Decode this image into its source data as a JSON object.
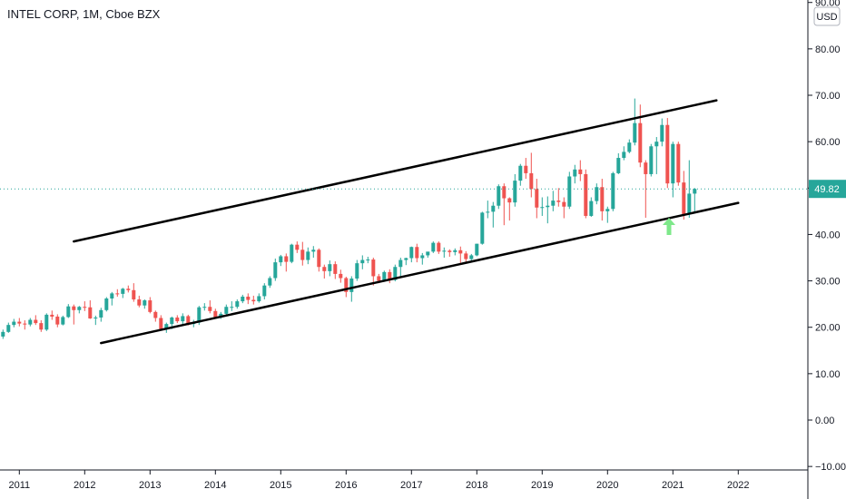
{
  "header": {
    "title": "INTEL CORP, 1M, Cboe BZX"
  },
  "currency_label": "USD",
  "last_price_label": "49.82",
  "colors": {
    "up": "#26a69a",
    "down": "#ef5350",
    "axis": "#131722",
    "price_line": "#26a69a",
    "trendline": "#000000",
    "arrow": "#7ee88a"
  },
  "chart_data": {
    "type": "candlestick",
    "title": "INTEL CORP, 1M, Cboe BZX",
    "y_axis": {
      "position": "right",
      "ticks": [
        {
          "value": 90,
          "label": "90.00"
        },
        {
          "value": 80,
          "label": "80.00"
        },
        {
          "value": 70,
          "label": "70.00"
        },
        {
          "value": 60,
          "label": "60.00"
        },
        {
          "value": 50,
          "label": "50.00"
        },
        {
          "value": 40,
          "label": "40.00"
        },
        {
          "value": 30,
          "label": "30.00"
        },
        {
          "value": 20,
          "label": "20.00"
        },
        {
          "value": 10,
          "label": "10.00"
        },
        {
          "value": 0,
          "label": "0.00"
        },
        {
          "value": -10,
          "label": "−10.00"
        }
      ]
    },
    "x_axis": {
      "ticks": [
        "2011",
        "2012",
        "2013",
        "2014",
        "2015",
        "2016",
        "2017",
        "2018",
        "2019",
        "2020",
        "2021",
        "2022"
      ]
    },
    "start_month": "2010-10",
    "candles": [
      [
        18.0,
        19.5,
        17.5,
        19.0
      ],
      [
        19.0,
        21.0,
        18.8,
        20.5
      ],
      [
        20.5,
        21.8,
        20.0,
        21.2
      ],
      [
        21.2,
        22.0,
        20.2,
        20.8
      ],
      [
        20.8,
        21.5,
        19.5,
        20.6
      ],
      [
        20.6,
        22.0,
        20.2,
        21.6
      ],
      [
        21.6,
        22.6,
        20.5,
        20.9
      ],
      [
        20.9,
        21.5,
        19.0,
        19.5
      ],
      [
        19.5,
        23.0,
        19.2,
        22.7
      ],
      [
        22.7,
        23.6,
        21.6,
        22.3
      ],
      [
        22.3,
        22.8,
        20.0,
        20.6
      ],
      [
        20.6,
        22.5,
        20.4,
        22.2
      ],
      [
        22.2,
        25.0,
        22.0,
        24.5
      ],
      [
        24.5,
        24.9,
        20.6,
        23.7
      ],
      [
        23.7,
        24.6,
        23.0,
        24.4
      ],
      [
        24.4,
        25.6,
        23.5,
        24.3
      ],
      [
        24.3,
        25.8,
        21.8,
        21.9
      ],
      [
        21.9,
        22.5,
        20.5,
        22.1
      ],
      [
        22.1,
        24.2,
        21.2,
        23.7
      ],
      [
        23.7,
        26.5,
        23.4,
        26.2
      ],
      [
        26.2,
        27.6,
        24.7,
        27.3
      ],
      [
        27.3,
        28.2,
        26.6,
        27.2
      ],
      [
        27.2,
        28.5,
        26.3,
        28.3
      ],
      [
        28.3,
        29.0,
        27.5,
        28.0
      ],
      [
        28.0,
        29.5,
        25.5,
        26.0
      ],
      [
        26.0,
        26.8,
        24.3,
        24.7
      ],
      [
        24.7,
        26.0,
        24.0,
        25.8
      ],
      [
        25.8,
        26.5,
        23.0,
        23.3
      ],
      [
        23.3,
        23.6,
        21.2,
        22.0
      ],
      [
        22.0,
        22.6,
        19.3,
        19.6
      ],
      [
        19.6,
        21.0,
        18.8,
        20.7
      ],
      [
        20.7,
        22.3,
        19.6,
        22.1
      ],
      [
        22.1,
        22.6,
        20.9,
        21.3
      ],
      [
        21.3,
        23.0,
        20.7,
        22.4
      ],
      [
        22.4,
        22.7,
        20.4,
        20.7
      ],
      [
        20.7,
        21.6,
        20.0,
        21.0
      ],
      [
        21.0,
        24.6,
        20.5,
        24.3
      ],
      [
        24.3,
        25.2,
        23.6,
        24.4
      ],
      [
        24.4,
        25.8,
        23.0,
        23.5
      ],
      [
        23.5,
        24.0,
        22.0,
        22.2
      ],
      [
        22.2,
        23.3,
        21.8,
        22.9
      ],
      [
        22.9,
        24.9,
        22.5,
        24.4
      ],
      [
        24.4,
        25.6,
        23.5,
        24.4
      ],
      [
        24.4,
        26.0,
        24.0,
        25.6
      ],
      [
        25.6,
        27.0,
        25.2,
        26.6
      ],
      [
        26.6,
        27.3,
        25.0,
        25.9
      ],
      [
        25.9,
        26.8,
        24.9,
        25.6
      ],
      [
        25.6,
        27.3,
        25.3,
        26.7
      ],
      [
        26.7,
        29.5,
        26.0,
        29.0
      ],
      [
        29.0,
        31.0,
        28.5,
        30.6
      ],
      [
        30.6,
        34.8,
        30.0,
        34.0
      ],
      [
        34.0,
        35.6,
        33.2,
        35.3
      ],
      [
        35.3,
        35.9,
        32.0,
        34.1
      ],
      [
        34.1,
        38.0,
        33.8,
        37.8
      ],
      [
        37.8,
        38.5,
        36.0,
        36.7
      ],
      [
        36.7,
        38.4,
        33.3,
        34.5
      ],
      [
        34.5,
        37.2,
        33.6,
        36.3
      ],
      [
        36.3,
        37.5,
        35.0,
        36.7
      ],
      [
        36.7,
        37.0,
        32.0,
        33.0
      ],
      [
        33.0,
        33.5,
        30.5,
        32.1
      ],
      [
        32.1,
        34.4,
        31.0,
        33.6
      ],
      [
        33.6,
        34.2,
        30.4,
        31.5
      ],
      [
        31.5,
        32.4,
        29.6,
        30.6
      ],
      [
        30.6,
        30.9,
        26.5,
        27.6
      ],
      [
        27.6,
        31.0,
        25.5,
        30.5
      ],
      [
        30.5,
        34.5,
        30.0,
        33.8
      ],
      [
        33.8,
        35.5,
        32.5,
        34.5
      ],
      [
        34.5,
        35.2,
        33.8,
        34.6
      ],
      [
        34.6,
        35.0,
        29.0,
        31.0
      ],
      [
        31.0,
        31.5,
        29.5,
        30.0
      ],
      [
        30.0,
        32.2,
        29.8,
        31.9
      ],
      [
        31.9,
        32.5,
        29.5,
        30.2
      ],
      [
        30.2,
        33.5,
        29.9,
        33.0
      ],
      [
        33.0,
        35.0,
        31.0,
        34.5
      ],
      [
        34.5,
        35.0,
        33.4,
        34.9
      ],
      [
        34.9,
        37.4,
        34.0,
        37.3
      ],
      [
        37.3,
        38.0,
        34.0,
        34.9
      ],
      [
        34.9,
        36.0,
        33.5,
        35.5
      ],
      [
        35.5,
        36.2,
        35.0,
        36.3
      ],
      [
        36.3,
        38.5,
        36.0,
        38.2
      ],
      [
        38.2,
        38.5,
        35.8,
        36.3
      ],
      [
        36.3,
        37.2,
        35.0,
        36.5
      ],
      [
        36.5,
        36.8,
        35.2,
        36.2
      ],
      [
        36.2,
        37.0,
        35.5,
        36.6
      ],
      [
        36.6,
        37.4,
        33.5,
        35.9
      ],
      [
        35.9,
        36.4,
        34.0,
        34.7
      ],
      [
        34.7,
        35.8,
        34.4,
        35.5
      ],
      [
        35.5,
        38.0,
        35.3,
        38.0
      ],
      [
        38.0,
        44.9,
        37.8,
        44.7
      ],
      [
        44.7,
        47.3,
        43.5,
        44.9
      ],
      [
        44.9,
        47.0,
        41.5,
        46.2
      ],
      [
        46.2,
        50.8,
        45.5,
        50.4
      ],
      [
        50.4,
        51.0,
        42.0,
        47.8
      ],
      [
        47.8,
        48.0,
        43.0,
        46.9
      ],
      [
        46.9,
        53.0,
        46.0,
        51.6
      ],
      [
        51.6,
        55.2,
        50.5,
        54.8
      ],
      [
        54.8,
        56.5,
        52.0,
        53.2
      ],
      [
        53.2,
        57.6,
        48.0,
        49.8
      ],
      [
        49.8,
        52.0,
        43.5,
        45.8
      ],
      [
        45.8,
        48.0,
        44.0,
        45.9
      ],
      [
        45.9,
        48.2,
        42.4,
        46.2
      ],
      [
        46.2,
        49.4,
        45.0,
        47.3
      ],
      [
        47.3,
        50.0,
        46.0,
        47.0
      ],
      [
        47.0,
        48.0,
        43.5,
        46.0
      ],
      [
        46.0,
        53.5,
        45.5,
        52.5
      ],
      [
        52.5,
        55.0,
        51.0,
        54.0
      ],
      [
        54.0,
        56.0,
        51.5,
        53.0
      ],
      [
        53.0,
        54.0,
        43.5,
        44.0
      ],
      [
        44.0,
        48.0,
        43.8,
        47.2
      ],
      [
        47.2,
        51.0,
        46.5,
        50.2
      ],
      [
        50.2,
        52.0,
        43.0,
        45.0
      ],
      [
        45.0,
        46.0,
        42.5,
        45.5
      ],
      [
        45.5,
        53.5,
        45.0,
        53.2
      ],
      [
        53.2,
        57.5,
        53.0,
        56.5
      ],
      [
        56.5,
        59.0,
        56.0,
        57.8
      ],
      [
        57.8,
        60.5,
        57.5,
        59.8
      ],
      [
        59.8,
        69.3,
        59.2,
        64.0
      ],
      [
        64.0,
        68.0,
        54.5,
        55.5
      ],
      [
        55.5,
        56.0,
        43.6,
        53.0
      ],
      [
        53.0,
        59.5,
        52.5,
        59.0
      ],
      [
        59.0,
        61.0,
        53.0,
        60.0
      ],
      [
        60.0,
        65.0,
        59.0,
        63.6
      ],
      [
        63.6,
        65.1,
        50.0,
        51.0
      ],
      [
        51.0,
        60.0,
        48.0,
        59.5
      ],
      [
        59.5,
        60.0,
        50.5,
        51.2
      ],
      [
        51.2,
        53.7,
        43.2,
        44.3
      ],
      [
        44.3,
        56.0,
        43.6,
        48.8
      ],
      [
        48.8,
        50.0,
        44.5,
        49.82
      ]
    ],
    "trendlines": [
      {
        "name": "upper-channel",
        "x1": "2011-11",
        "y1": 38.5,
        "x2": "2021-09",
        "y2": 68.9
      },
      {
        "name": "lower-channel",
        "x1": "2012-04",
        "y1": 16.6,
        "x2": "2022-01",
        "y2": 46.8
      }
    ],
    "last_price": 49.82,
    "grid": false
  }
}
